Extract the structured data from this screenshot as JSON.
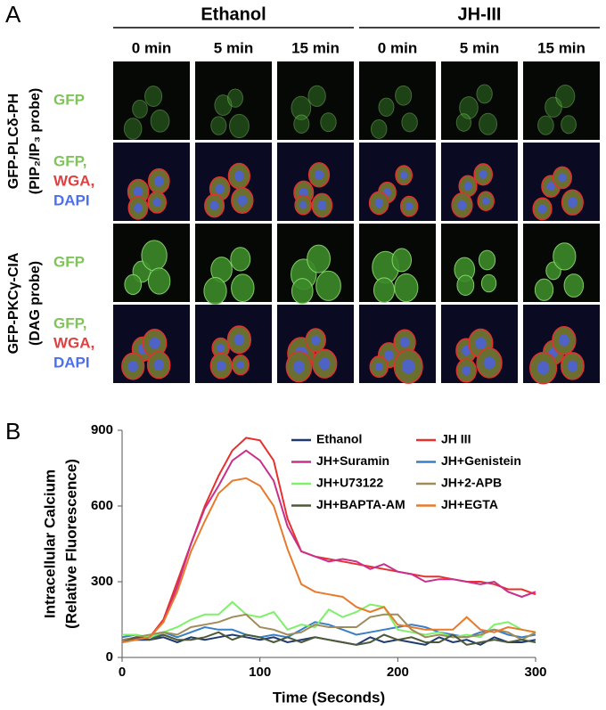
{
  "panel_a": {
    "panel_label": "A",
    "groups": [
      "Ethanol",
      "JH-III"
    ],
    "times": [
      "0 min",
      "5 min",
      "15 min",
      "0 min",
      "5 min",
      "15 min"
    ],
    "row_groups": [
      {
        "label": [
          "GFP-PLCδ-PH",
          "(PIP₂/IP₃ probe)"
        ],
        "rows": [
          [
            "GFP"
          ],
          [
            "GFP,",
            "WGA,",
            "DAPI"
          ]
        ]
      },
      {
        "label": [
          "GFP-PKCγ-CIA",
          "(DAG probe)"
        ],
        "rows": [
          [
            "GFP"
          ],
          [
            "GFP,",
            "WGA,",
            "DAPI"
          ]
        ]
      }
    ]
  },
  "chart_data": {
    "type": "line",
    "panel_label": "B",
    "xlabel": "Time (Seconds)",
    "ylabel": [
      "Intracellular Calcium",
      "(Relative Fluorescence)"
    ],
    "x": [
      0,
      10,
      20,
      30,
      40,
      50,
      60,
      70,
      80,
      90,
      100,
      110,
      120,
      130,
      140,
      150,
      160,
      170,
      180,
      190,
      200,
      210,
      220,
      230,
      240,
      250,
      260,
      270,
      280,
      290,
      300
    ],
    "xlim": [
      0,
      300
    ],
    "xticks": [
      0,
      100,
      200,
      300
    ],
    "ylim": [
      0,
      900
    ],
    "yticks": [
      0,
      300,
      600,
      900
    ],
    "series": [
      {
        "name": "Ethanol",
        "color": "#1f3a6e",
        "values": [
          60,
          70,
          70,
          80,
          60,
          80,
          70,
          80,
          90,
          80,
          70,
          80,
          60,
          70,
          80,
          70,
          60,
          50,
          80,
          60,
          70,
          60,
          50,
          80,
          60,
          70,
          50,
          80,
          60,
          60,
          70
        ]
      },
      {
        "name": "JH III",
        "color": "#e8302e",
        "values": [
          70,
          75,
          80,
          150,
          300,
          450,
          600,
          720,
          820,
          870,
          860,
          780,
          550,
          420,
          400,
          390,
          380,
          370,
          360,
          350,
          340,
          330,
          320,
          320,
          310,
          300,
          300,
          290,
          270,
          270,
          250
        ]
      },
      {
        "name": "JH+Suramin",
        "color": "#c8308c",
        "values": [
          70,
          75,
          80,
          140,
          280,
          450,
          590,
          680,
          780,
          820,
          780,
          700,
          520,
          420,
          400,
          380,
          390,
          380,
          350,
          370,
          340,
          330,
          300,
          310,
          310,
          300,
          290,
          300,
          260,
          240,
          260
        ]
      },
      {
        "name": "JH+Genistein",
        "color": "#3a7fc4",
        "values": [
          80,
          90,
          70,
          100,
          80,
          100,
          120,
          110,
          110,
          90,
          80,
          90,
          80,
          110,
          140,
          130,
          110,
          90,
          100,
          110,
          120,
          130,
          120,
          100,
          90,
          80,
          100,
          110,
          90,
          80,
          90
        ]
      },
      {
        "name": "JH+U73122",
        "color": "#7ef06a",
        "values": [
          90,
          90,
          80,
          100,
          120,
          150,
          170,
          170,
          220,
          170,
          160,
          180,
          110,
          130,
          120,
          190,
          160,
          180,
          210,
          200,
          110,
          100,
          90,
          100,
          80,
          90,
          80,
          130,
          140,
          110,
          100
        ]
      },
      {
        "name": "JH+2-APB",
        "color": "#a08c5a",
        "values": [
          70,
          80,
          90,
          100,
          90,
          120,
          130,
          140,
          160,
          170,
          120,
          110,
          90,
          100,
          130,
          120,
          120,
          120,
          160,
          170,
          170,
          110,
          80,
          90,
          80,
          80,
          90,
          110,
          100,
          70,
          100
        ]
      },
      {
        "name": "JH+BAPTA-AM",
        "color": "#4d5a3a",
        "values": [
          60,
          80,
          70,
          90,
          70,
          70,
          80,
          100,
          70,
          90,
          80,
          60,
          80,
          60,
          80,
          70,
          60,
          50,
          60,
          90,
          70,
          80,
          60,
          60,
          90,
          50,
          60,
          70,
          60,
          70,
          60
        ]
      },
      {
        "name": "JH+EGTA",
        "color": "#e77a2c",
        "values": [
          60,
          70,
          80,
          140,
          260,
          420,
          540,
          650,
          700,
          710,
          680,
          600,
          430,
          290,
          260,
          250,
          240,
          200,
          180,
          200,
          130,
          120,
          110,
          110,
          110,
          160,
          110,
          100,
          120,
          110,
          100
        ]
      }
    ]
  }
}
